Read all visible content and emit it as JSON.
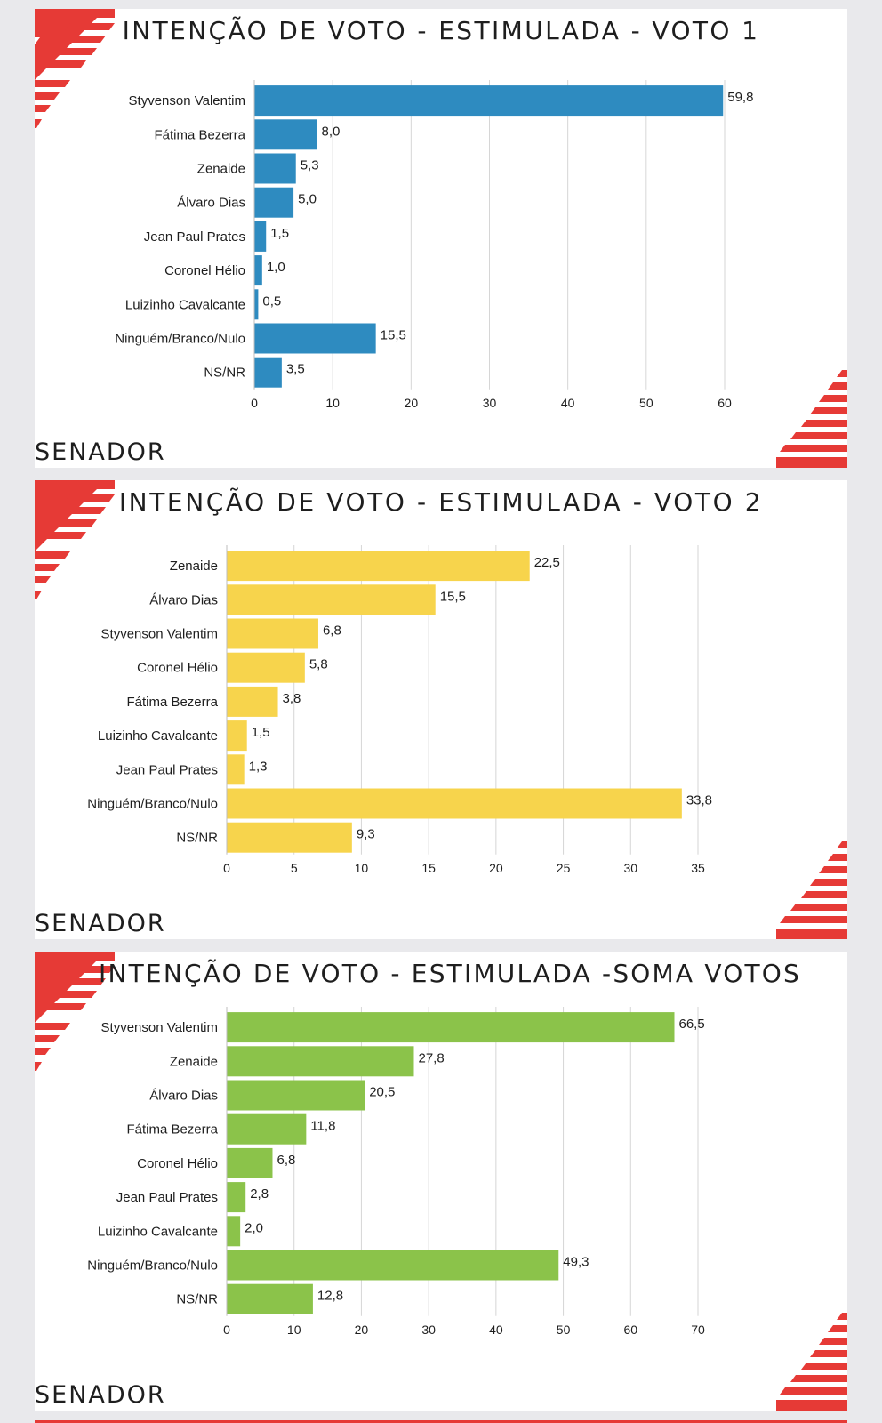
{
  "panels": [
    {
      "title": "INTENÇÃO DE VOTO - ESTIMULADA - VOTO 1",
      "subtitle": "SENADOR"
    },
    {
      "title": "INTENÇÃO DE VOTO - ESTIMULADA - VOTO 2",
      "subtitle": "SENADOR"
    },
    {
      "title": "INTENÇÃO DE VOTO - ESTIMULADA -SOMA VOTOS",
      "subtitle": "SENADOR"
    }
  ],
  "colors": {
    "accent_red": "#e63a36",
    "voto1": "#2e8bc0",
    "voto2": "#f7d44c",
    "soma": "#8bc34a",
    "grid": "#d6d6d6",
    "text": "#1e1e1e"
  },
  "chart_data": [
    {
      "type": "bar",
      "orientation": "horizontal",
      "title": "INTENÇÃO DE VOTO - ESTIMULADA - VOTO 1",
      "categories": [
        "Styvenson Valentim",
        "Fátima Bezerra",
        "Zenaide",
        "Álvaro Dias",
        "Jean Paul Prates",
        "Coronel Hélio",
        "Luizinho Cavalcante",
        "Ninguém/Branco/Nulo",
        "NS/NR"
      ],
      "values": [
        59.8,
        8.0,
        5.3,
        5.0,
        1.5,
        1.0,
        0.5,
        15.5,
        3.5
      ],
      "value_labels": [
        "59,8",
        "8,0",
        "5,3",
        "5,0",
        "1,5",
        "1,0",
        "0,5",
        "15,5",
        "3,5"
      ],
      "xticks": [
        0,
        10,
        20,
        30,
        40,
        50,
        60
      ],
      "xlim": [
        0,
        60
      ],
      "grid": true,
      "color": "#2e8bc0"
    },
    {
      "type": "bar",
      "orientation": "horizontal",
      "title": "INTENÇÃO DE VOTO - ESTIMULADA - VOTO 2",
      "categories": [
        "Zenaide",
        "Álvaro Dias",
        "Styvenson Valentim",
        "Coronel Hélio",
        "Fátima Bezerra",
        "Luizinho Cavalcante",
        "Jean Paul Prates",
        "Ninguém/Branco/Nulo",
        "NS/NR"
      ],
      "values": [
        22.5,
        15.5,
        6.8,
        5.8,
        3.8,
        1.5,
        1.3,
        33.8,
        9.3
      ],
      "value_labels": [
        "22,5",
        "15,5",
        "6,8",
        "5,8",
        "3,8",
        "1,5",
        "1,3",
        "33,8",
        "9,3"
      ],
      "xticks": [
        0,
        5,
        10,
        15,
        20,
        25,
        30,
        35
      ],
      "xlim": [
        0,
        35
      ],
      "grid": true,
      "color": "#f7d44c"
    },
    {
      "type": "bar",
      "orientation": "horizontal",
      "title": "INTENÇÃO DE VOTO - ESTIMULADA -SOMA VOTOS",
      "categories": [
        "Styvenson Valentim",
        "Zenaide",
        "Álvaro Dias",
        "Fátima Bezerra",
        "Coronel Hélio",
        "Jean Paul Prates",
        "Luizinho Cavalcante",
        "Ninguém/Branco/Nulo",
        "NS/NR"
      ],
      "values": [
        66.5,
        27.8,
        20.5,
        11.8,
        6.8,
        2.8,
        2.0,
        49.3,
        12.8
      ],
      "value_labels": [
        "66,5",
        "27,8",
        "20,5",
        "11,8",
        "6,8",
        "2,8",
        "2,0",
        "49,3",
        "12,8"
      ],
      "xticks": [
        0,
        10,
        20,
        30,
        40,
        50,
        60,
        70
      ],
      "xlim": [
        0,
        70
      ],
      "grid": true,
      "color": "#8bc34a"
    }
  ]
}
